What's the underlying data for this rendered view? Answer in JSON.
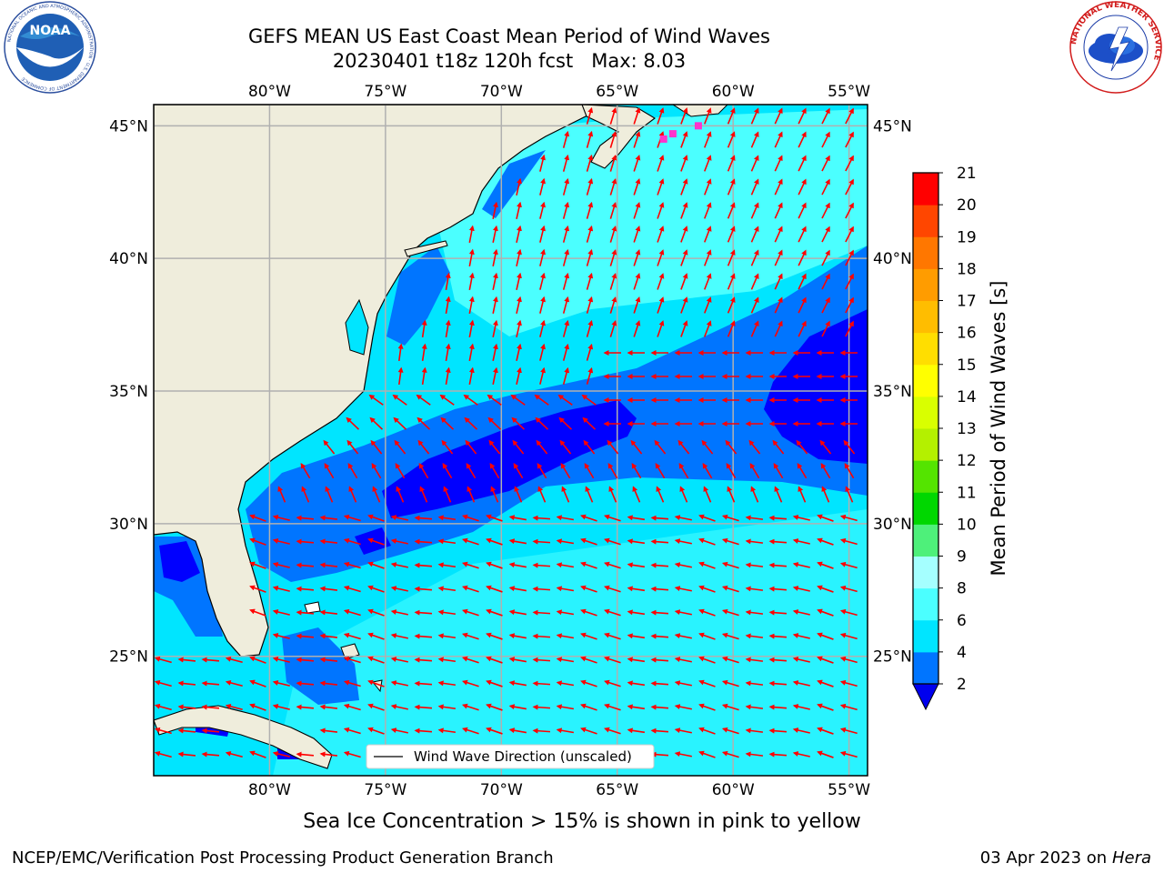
{
  "header": {
    "title_line1": "GEFS MEAN US East Coast Mean Period of Wind Waves",
    "title_line2": "20230401 t18z 120h fcst   Max: 8.03"
  },
  "logos": {
    "left": {
      "name": "noaa-logo",
      "text": "NOAA",
      "ring_text": "NATIONAL OCEANIC AND ATMOSPHERIC ADMINISTRATION · U.S. DEPARTMENT OF COMMERCE"
    },
    "right": {
      "name": "nws-logo",
      "ring_text": "NATIONAL WEATHER SERVICE"
    }
  },
  "map": {
    "lon_labels": [
      "80°W",
      "75°W",
      "70°W",
      "65°W",
      "60°W",
      "55°W"
    ],
    "lon_values": [
      -80,
      -75,
      -70,
      -65,
      -60,
      -55
    ],
    "lat_labels": [
      "45°N",
      "40°N",
      "35°N",
      "30°N",
      "25°N"
    ],
    "lat_values": [
      45,
      40,
      35,
      30,
      25
    ],
    "extent": {
      "lon_min": -85,
      "lon_max": -54.2,
      "lat_min": 20.5,
      "lat_max": 45.8
    },
    "land_color": "#efeddc",
    "gridline_color": "#b0b0b0",
    "arrow_color": "#ff0000",
    "legend_label": "Wind Wave Direction (unscaled)",
    "ice_flags": [
      {
        "lon": -63.0,
        "lat": 44.5
      },
      {
        "lon": -62.6,
        "lat": 44.7
      },
      {
        "lon": -61.5,
        "lat": 45.0
      }
    ]
  },
  "colorbar": {
    "label": "Mean Period of Wind Waves [s]",
    "ticks": [
      "2",
      "4",
      "6",
      "8",
      "9",
      "10",
      "11",
      "12",
      "13",
      "14",
      "15",
      "16",
      "17",
      "18",
      "19",
      "20",
      "21"
    ],
    "colors": [
      "#0000ff",
      "#0075ff",
      "#00e5ff",
      "#4bffff",
      "#a5ffff",
      "#4ef07a",
      "#00d700",
      "#54e400",
      "#b4f000",
      "#d9ff00",
      "#ffff00",
      "#ffde00",
      "#ffbd00",
      "#ff9c00",
      "#ff7700",
      "#ff4600",
      "#ff0000"
    ],
    "under_color": "#0000ee"
  },
  "footer": {
    "note": "Sea Ice Concentration > 15% is shown in pink to yellow",
    "left": "NCEP/EMC/Verification Post Processing Product Generation Branch",
    "date": "03 Apr 2023 on ",
    "machine": "Hera"
  }
}
